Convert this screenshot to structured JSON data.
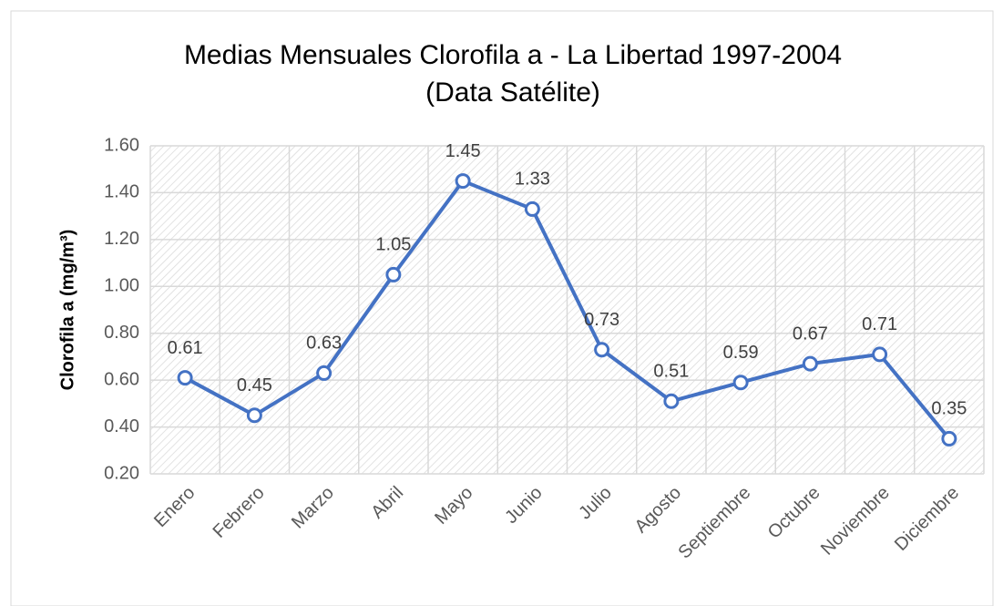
{
  "chart_data": {
    "type": "line",
    "title": "Medias Mensuales Clorofila a - La Libertad 1997-2004",
    "subtitle": "(Data Satélite)",
    "y_label": "Clorofila a (mg/m³)",
    "categories": [
      "Enero",
      "Febrero",
      "Marzo",
      "Abril",
      "Mayo",
      "Junio",
      "Julio",
      "Agosto",
      "Septiembre",
      "Octubre",
      "Noviembre",
      "Diciembre"
    ],
    "values": [
      0.61,
      0.45,
      0.63,
      1.05,
      1.45,
      1.33,
      0.73,
      0.51,
      0.59,
      0.67,
      0.71,
      0.35
    ],
    "color": "#4472c4",
    "ylim": [
      0.2,
      1.6
    ],
    "yticks": [
      {
        "value": 0.2,
        "label": "0.20"
      },
      {
        "value": 0.4,
        "label": "0.40"
      },
      {
        "value": 0.6,
        "label": "0.60"
      },
      {
        "value": 0.8,
        "label": "0.80"
      },
      {
        "value": 1.0,
        "label": "1.00"
      },
      {
        "value": 1.2,
        "label": "1.20"
      },
      {
        "value": 1.4,
        "label": "1.40"
      },
      {
        "value": 1.6,
        "label": "1.60"
      }
    ],
    "grid": true
  }
}
